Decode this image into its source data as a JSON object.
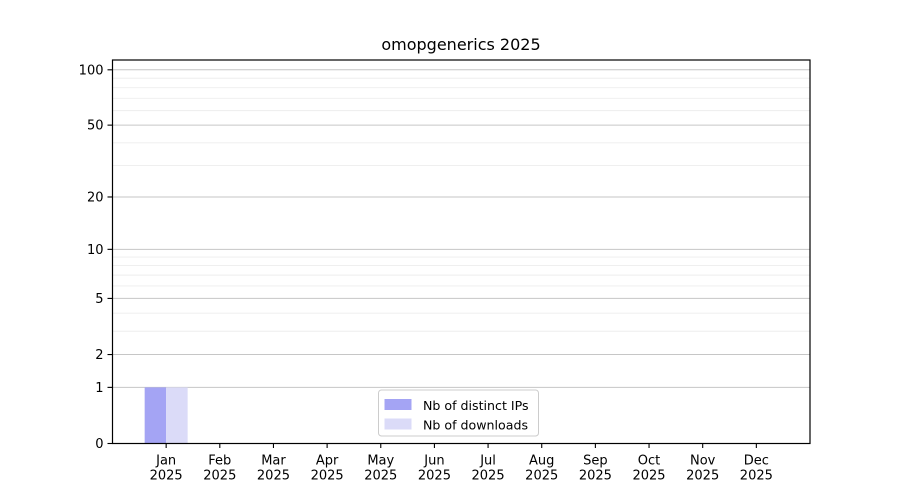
{
  "chart_data": {
    "type": "bar",
    "title": "omopgenerics 2025",
    "x_axis": {
      "months": [
        "Jan",
        "Feb",
        "Mar",
        "Apr",
        "May",
        "Jun",
        "Jul",
        "Aug",
        "Sep",
        "Oct",
        "Nov",
        "Dec"
      ],
      "year": "2025"
    },
    "categories": [
      "Jan 2025",
      "Feb 2025",
      "Mar 2025",
      "Apr 2025",
      "May 2025",
      "Jun 2025",
      "Jul 2025",
      "Aug 2025",
      "Sep 2025",
      "Oct 2025",
      "Nov 2025",
      "Dec 2025"
    ],
    "series": [
      {
        "name": "Nb of distinct IPs",
        "color": "#a4a4f4",
        "values": [
          1,
          0,
          0,
          0,
          0,
          0,
          0,
          0,
          0,
          0,
          0,
          0
        ]
      },
      {
        "name": "Nb of downloads",
        "color": "#dbdbf8",
        "values": [
          1,
          0,
          0,
          0,
          0,
          0,
          0,
          0,
          0,
          0,
          0,
          0
        ]
      }
    ],
    "y_scale": "log1p",
    "y_major_ticks": [
      0,
      1,
      2,
      5,
      10,
      20,
      50,
      100
    ],
    "y_minor_ticks": [
      3,
      4,
      6,
      7,
      8,
      9,
      30,
      40,
      60,
      70,
      80,
      90
    ],
    "ylim": [
      0,
      113
    ],
    "grid": "both",
    "legend_position": "lower center",
    "grid_major_color": "#c6c6c6",
    "grid_minor_color": "#ededed"
  }
}
